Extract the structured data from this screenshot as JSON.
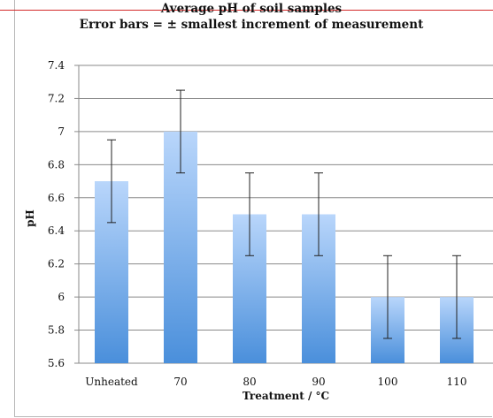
{
  "chart_data": {
    "type": "bar",
    "title": "Average pH of soil samples",
    "subtitle": "Error bars = ± smallest increment of measurement",
    "xlabel": "Treatment / °C",
    "ylabel": "pH",
    "categories": [
      "Unheated",
      "70",
      "80",
      "90",
      "100",
      "110"
    ],
    "values": [
      6.7,
      7.0,
      6.5,
      6.5,
      6.0,
      6.0
    ],
    "error": 0.25,
    "ylim": [
      5.6,
      7.4
    ],
    "yticks": [
      5.6,
      5.8,
      6.0,
      6.2,
      6.4,
      6.6,
      6.8,
      7.0,
      7.2,
      7.4
    ],
    "ytick_labels": [
      "5.6",
      "5.8",
      "6",
      "6.2",
      "6.4",
      "6.6",
      "6.8",
      "7",
      "7.2",
      "7.4"
    ],
    "grid": true,
    "bar_color_top": "#b9d6fb",
    "bar_color_bottom": "#4a8fdb"
  }
}
